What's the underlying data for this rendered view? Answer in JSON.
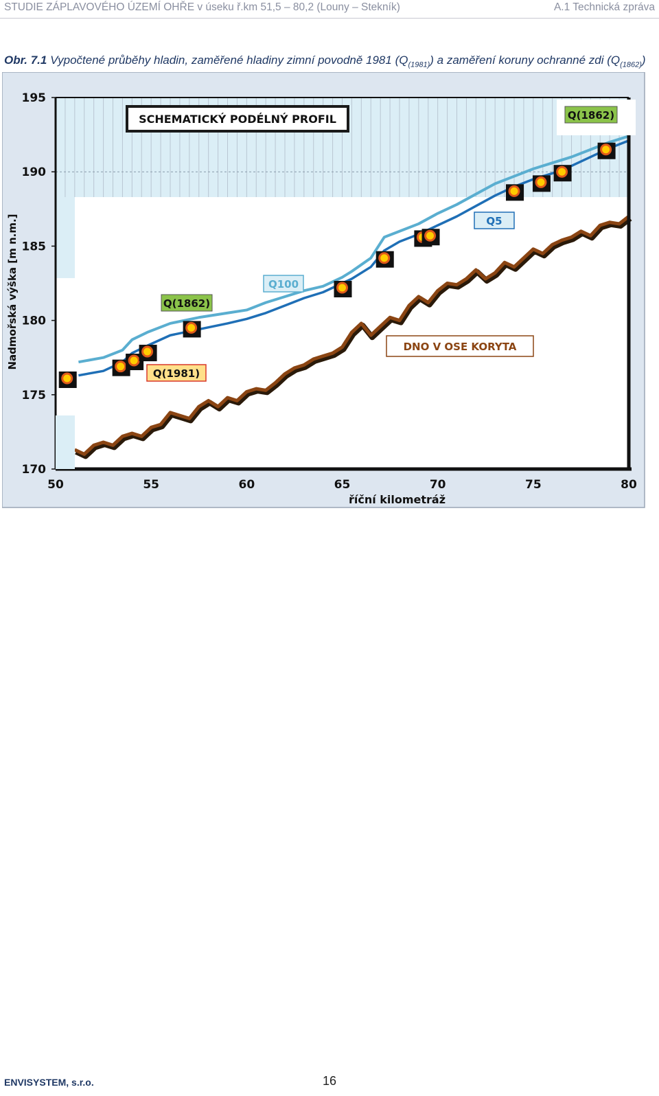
{
  "header": {
    "left": "STUDIE ZÁPLAVOVÉHO ÚZEMÍ OHŘE v úseku ř.km 51,5 – 80,2 (Louny – Stekník)",
    "right": "A.1 Technická zpráva"
  },
  "caption": {
    "prefix": "Obr. 7.1",
    "text_a": " Vypočtené průběhy hladin, zaměřené hladiny zimní povodně 1981 (Q",
    "sub_a": "(1981)",
    "text_b": ") a zaměření koruny ochranné zdi (Q",
    "sub_b": "(1862)",
    "text_c": ")"
  },
  "footer": {
    "company": "ENVISYSTEM",
    "company_suffix": ", s.r.o.",
    "page": "16"
  },
  "colors": {
    "q5": "#5aaed0",
    "q100": "#1f6fb6",
    "bed": "#8b4513",
    "plot_bg": "#ffffff",
    "outer_bg": "#dde6f0",
    "band_bg": "#dbeef6",
    "marker_fill": "#ffcc00",
    "marker_edge": "#e05a1a",
    "q1862_label_bg": "#8bc34a"
  },
  "chart_data": {
    "type": "line",
    "title": "SCHEMATICKÝ PODÉLNÝ PROFIL",
    "xlabel": "říční kilometráž",
    "ylabel": "Nadmořská výška [m n.m.]",
    "xlim": [
      50,
      80
    ],
    "ylim": [
      170,
      195
    ],
    "xticks": [
      50,
      55,
      60,
      65,
      70,
      75,
      80
    ],
    "yticks": [
      170,
      175,
      180,
      185,
      190,
      195
    ],
    "grid": "vertical",
    "series": [
      {
        "name": "Q5",
        "x": [
          51.2,
          52.5,
          53.5,
          54.0,
          54.8,
          56.0,
          57.5,
          59.0,
          60.0,
          61.0,
          62.0,
          63.0,
          64.0,
          65.0,
          65.5,
          66.5,
          67.2,
          68.0,
          69.0,
          70.0,
          71.0,
          72.0,
          73.0,
          74.0,
          75.0,
          76.0,
          77.0,
          78.0,
          79.0,
          80.0
        ],
        "y": [
          177.2,
          177.5,
          178.0,
          178.7,
          179.2,
          179.8,
          180.2,
          180.5,
          180.7,
          181.2,
          181.6,
          182.0,
          182.3,
          182.9,
          183.3,
          184.2,
          185.6,
          186.0,
          186.5,
          187.2,
          187.8,
          188.5,
          189.2,
          189.7,
          190.2,
          190.6,
          191.0,
          191.5,
          192.0,
          192.4
        ]
      },
      {
        "name": "Q100",
        "x": [
          51.2,
          52.5,
          53.5,
          54.0,
          54.8,
          56.0,
          57.5,
          59.0,
          60.0,
          61.0,
          62.0,
          63.0,
          64.0,
          65.0,
          65.5,
          66.5,
          67.2,
          68.0,
          69.0,
          70.0,
          71.0,
          72.0,
          73.0,
          74.0,
          75.0,
          76.0,
          77.0,
          78.0,
          79.0,
          80.0
        ],
        "y": [
          176.3,
          176.6,
          177.2,
          177.8,
          178.3,
          179.0,
          179.4,
          179.8,
          180.1,
          180.5,
          181.0,
          181.5,
          181.9,
          182.5,
          182.8,
          183.6,
          184.7,
          185.3,
          185.8,
          186.4,
          187.0,
          187.7,
          188.4,
          189.0,
          189.5,
          189.9,
          190.4,
          191.0,
          191.6,
          192.1
        ]
      },
      {
        "name": "DNO V OSE KORYTA",
        "x": [
          51.0,
          51.5,
          52.0,
          52.5,
          53.0,
          53.5,
          54.0,
          54.5,
          55.0,
          55.5,
          56.0,
          56.5,
          57.0,
          57.5,
          58.0,
          58.5,
          59.0,
          59.5,
          60.0,
          60.5,
          61.0,
          61.5,
          62.0,
          62.5,
          63.0,
          63.5,
          64.0,
          64.5,
          65.0,
          65.5,
          66.0,
          66.5,
          67.0,
          67.5,
          68.0,
          68.5,
          69.0,
          69.5,
          70.0,
          70.5,
          71.0,
          71.5,
          72.0,
          72.5,
          73.0,
          73.5,
          74.0,
          74.5,
          75.0,
          75.5,
          76.0,
          76.5,
          77.0,
          77.5,
          78.0,
          78.5,
          79.0,
          79.5,
          80.0
        ],
        "y": [
          171.3,
          171.0,
          171.6,
          171.8,
          171.6,
          172.2,
          172.4,
          172.2,
          172.8,
          173.0,
          173.8,
          173.6,
          173.4,
          174.2,
          174.6,
          174.2,
          174.8,
          174.6,
          175.2,
          175.4,
          175.3,
          175.8,
          176.4,
          176.8,
          177.0,
          177.4,
          177.6,
          177.8,
          178.2,
          179.2,
          179.8,
          179.0,
          179.6,
          180.2,
          180.0,
          181.0,
          181.6,
          181.2,
          182.0,
          182.5,
          182.4,
          182.8,
          183.4,
          182.8,
          183.2,
          183.9,
          183.6,
          184.2,
          184.8,
          184.5,
          185.1,
          185.4,
          185.6,
          186.0,
          185.7,
          186.4,
          186.6,
          186.5,
          187.0
        ]
      }
    ],
    "measured_points": {
      "name": "Q(1981)",
      "x": [
        50.6,
        53.4,
        54.1,
        54.8,
        57.1,
        65.0,
        67.2,
        69.2,
        69.6,
        74.0,
        75.4,
        76.5,
        78.8
      ],
      "y": [
        176.1,
        176.9,
        177.3,
        177.9,
        179.5,
        182.2,
        184.2,
        185.6,
        185.7,
        188.7,
        189.3,
        190.0,
        191.5
      ]
    },
    "annotations": {
      "title_box": "SCHEMATICKÝ PODÉLNÝ PROFIL",
      "q1862_top": "Q(1862)",
      "q1862_mid": "Q(1862)",
      "q100": "Q100",
      "q5": "Q5",
      "q1981": "Q(1981)",
      "bed": "DNO V OSE KORYTA"
    }
  }
}
